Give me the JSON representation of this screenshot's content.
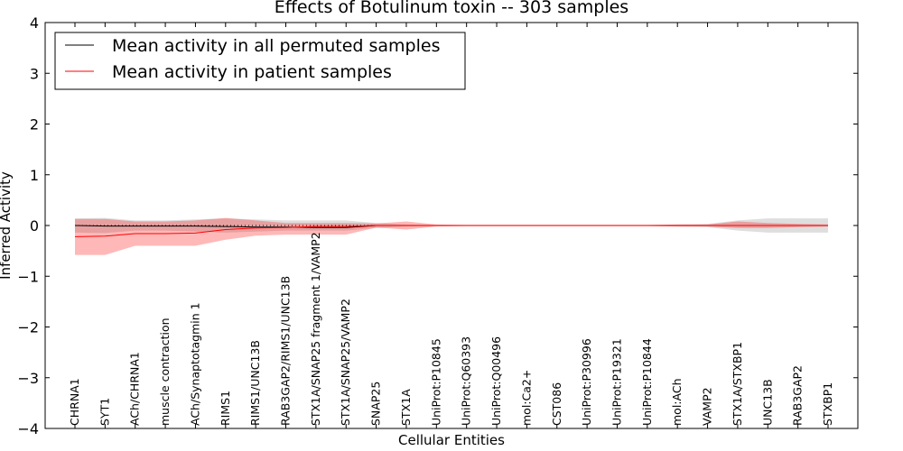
{
  "chart_data": {
    "type": "line",
    "title": "Effects of Botulinum toxin -- 303 samples",
    "xlabel": "Cellular Entities",
    "ylabel": "Inferred Activity",
    "ylim": [
      -4,
      4
    ],
    "yticks": [
      "−4",
      "−3",
      "−2",
      "−1",
      "0",
      "1",
      "2",
      "3",
      "4"
    ],
    "ytick_values": [
      -4,
      -3,
      -2,
      -1,
      0,
      1,
      2,
      3,
      4
    ],
    "categories": [
      "CHRNA1",
      "SYT1",
      "ACh/CHRNA1",
      "muscle contraction",
      "ACh/Synaptotagmin 1",
      "RIMS1",
      "RIMS1/UNC13B",
      "RAB3GAP2/RIMS1/UNC13B",
      "STX1A/SNAP25 fragment 1/VAMP2",
      "STX1A/SNAP25/VAMP2",
      "SNAP25",
      "STX1A",
      "UniProt:P10845",
      "UniProt:Q60393",
      "UniProt:Q00496",
      "mol:Ca2+",
      "CST086",
      "UniProt:P30996",
      "UniProt:P19321",
      "UniProt:P10844",
      "mol:ACh",
      "VAMP2",
      "STX1A/STXBP1",
      "UNC13B",
      "RAB3GAP2",
      "STXBP1"
    ],
    "legend_position": "upper-left",
    "series": [
      {
        "name": "Mean activity in all permuted samples",
        "color": "#000000",
        "values": [
          0.0,
          -0.01,
          -0.01,
          -0.01,
          -0.01,
          -0.02,
          -0.03,
          -0.03,
          -0.04,
          -0.04,
          0.0,
          0.0,
          0.0,
          0.0,
          0.0,
          0.0,
          0.0,
          0.0,
          0.0,
          0.0,
          0.0,
          0.0,
          0.0,
          0.0,
          0.0,
          0.0
        ],
        "band_upper": [
          0.14,
          0.15,
          0.1,
          0.1,
          0.12,
          0.14,
          0.12,
          0.1,
          0.1,
          0.1,
          0.05,
          0.02,
          0.01,
          0.01,
          0.01,
          0.01,
          0.01,
          0.01,
          0.01,
          0.01,
          0.02,
          0.03,
          0.1,
          0.14,
          0.14,
          0.14
        ],
        "band_lower": [
          -0.14,
          -0.15,
          -0.1,
          -0.1,
          -0.12,
          -0.14,
          -0.12,
          -0.1,
          -0.1,
          -0.1,
          -0.05,
          -0.02,
          -0.01,
          -0.01,
          -0.01,
          -0.01,
          -0.01,
          -0.01,
          -0.01,
          -0.01,
          -0.02,
          -0.03,
          -0.1,
          -0.14,
          -0.14,
          -0.14
        ]
      },
      {
        "name": "Mean activity in patient samples",
        "color": "#ff0000",
        "values": [
          -0.22,
          -0.21,
          -0.16,
          -0.16,
          -0.15,
          -0.08,
          -0.05,
          -0.04,
          -0.02,
          -0.02,
          0.0,
          0.0,
          0.0,
          0.0,
          0.0,
          0.0,
          0.0,
          0.0,
          0.0,
          0.0,
          0.0,
          0.0,
          0.0,
          0.0,
          0.0,
          0.0
        ],
        "band_upper": [
          0.13,
          0.13,
          0.08,
          0.08,
          0.1,
          0.15,
          0.1,
          0.05,
          0.05,
          0.05,
          0.04,
          0.08,
          0.02,
          0.01,
          0.01,
          0.01,
          0.01,
          0.01,
          0.01,
          0.01,
          0.02,
          0.02,
          0.08,
          0.05,
          0.03,
          0.02
        ],
        "band_lower": [
          -0.58,
          -0.58,
          -0.4,
          -0.4,
          -0.4,
          -0.28,
          -0.2,
          -0.18,
          -0.18,
          -0.18,
          -0.04,
          -0.08,
          -0.02,
          -0.01,
          -0.01,
          -0.01,
          -0.01,
          -0.01,
          -0.01,
          -0.01,
          -0.02,
          -0.02,
          -0.05,
          -0.05,
          -0.03,
          -0.02
        ]
      }
    ],
    "reference_line": {
      "y": 0,
      "style": "dotted"
    }
  }
}
